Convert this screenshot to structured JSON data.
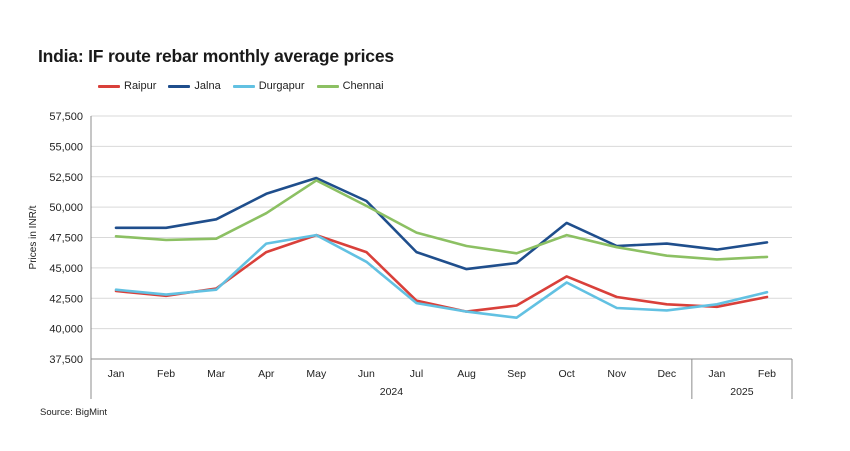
{
  "chart_data": {
    "type": "line",
    "title": "India: IF route rebar monthly average  prices",
    "ylabel": "Prices in INR/t",
    "xlabel": "",
    "ylim": [
      37500,
      57500
    ],
    "yticks": [
      "37,500",
      "40,000",
      "42,500",
      "45,000",
      "47,500",
      "50,000",
      "52,500",
      "55,000",
      "57,500"
    ],
    "ytick_values": [
      37500,
      40000,
      42500,
      45000,
      47500,
      50000,
      52500,
      55000,
      57500
    ],
    "categories": [
      "Jan",
      "Feb",
      "Mar",
      "Apr",
      "May",
      "Jun",
      "Jul",
      "Aug",
      "Sep",
      "Oct",
      "Nov",
      "Dec",
      "Jan",
      "Feb"
    ],
    "year_groups": [
      {
        "label": "2024",
        "count": 12
      },
      {
        "label": "2025",
        "count": 2
      }
    ],
    "grid": "horizontal",
    "legend_position": "top-left",
    "series": [
      {
        "name": "Raipur",
        "color": "#d9403a",
        "values": [
          43100,
          42700,
          43300,
          46300,
          47700,
          46300,
          42300,
          41400,
          41900,
          44300,
          42600,
          42000,
          41800,
          42600
        ]
      },
      {
        "name": "Jalna",
        "color": "#1f4e8c",
        "values": [
          48300,
          48300,
          49000,
          51100,
          52400,
          50500,
          46300,
          44900,
          45400,
          48700,
          46800,
          47000,
          46500,
          47100
        ]
      },
      {
        "name": "Durgapur",
        "color": "#62c1e2",
        "values": [
          43200,
          42800,
          43200,
          47000,
          47700,
          45500,
          42100,
          41400,
          40900,
          43800,
          41700,
          41500,
          42000,
          43000
        ]
      },
      {
        "name": "Chennai",
        "color": "#8cc063",
        "values": [
          47600,
          47300,
          47400,
          49500,
          52200,
          50100,
          47900,
          46800,
          46200,
          47700,
          46700,
          46000,
          45700,
          45900
        ]
      }
    ]
  },
  "source": "Source: BigMint"
}
